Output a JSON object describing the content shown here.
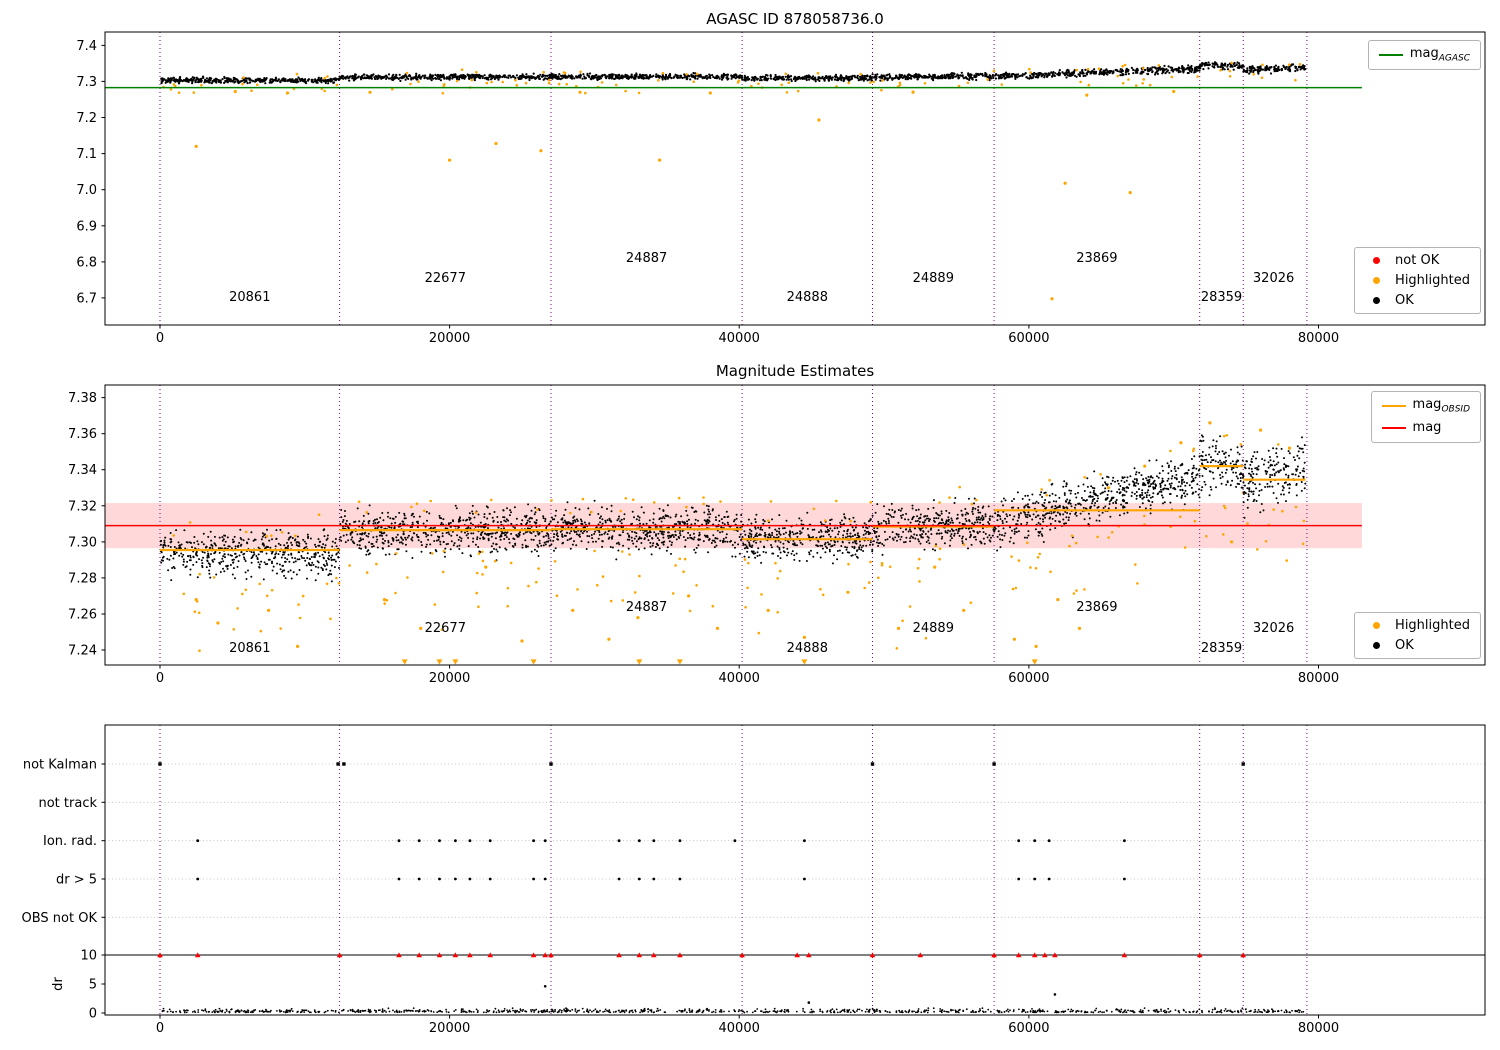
{
  "titles": {
    "top": "AGASC ID 878058736.0",
    "middle": "Magnitude Estimates"
  },
  "colors": {
    "ok": "#000000",
    "highlighted": "#ffa500",
    "not_ok": "#ff0000",
    "mag_agasc": "#008000",
    "mag": "#ff0000",
    "obsid": "#ffa500",
    "boundary": "#800080",
    "band": "#ffd9d9",
    "grid": "#bbbbbb"
  },
  "legends": {
    "agasc": {
      "base": "mag",
      "sub": "AGASC"
    },
    "top_markers": [
      {
        "label": "not OK",
        "color_key": "not_ok"
      },
      {
        "label": "Highlighted",
        "color_key": "highlighted"
      },
      {
        "label": "OK",
        "color_key": "ok"
      }
    ],
    "mid_lines": [
      {
        "base": "mag",
        "sub": "OBSID",
        "color_key": "obsid"
      },
      {
        "base": "mag",
        "sub": "",
        "color_key": "mag"
      }
    ],
    "mid_markers": [
      {
        "label": "Highlighted",
        "color_key": "highlighted"
      },
      {
        "label": "OK",
        "color_key": "ok"
      }
    ]
  },
  "chart_data": [
    {
      "type": "scatter",
      "title": "AGASC ID 878058736.0",
      "ylim": [
        6.625,
        7.437
      ],
      "yticks": [
        {
          "v": 7.4,
          "label": "7.4"
        },
        {
          "v": 7.3,
          "label": "7.3"
        },
        {
          "v": 7.2,
          "label": "7.2"
        },
        {
          "v": 7.1,
          "label": "7.1"
        },
        {
          "v": 7.0,
          "label": "7.0"
        },
        {
          "v": 6.9,
          "label": "6.9"
        },
        {
          "v": 6.8,
          "label": "6.8"
        },
        {
          "v": 6.7,
          "label": "6.7"
        }
      ],
      "xticks": [
        {
          "v": 0,
          "label": "0"
        },
        {
          "v": 20000,
          "label": "20000"
        },
        {
          "v": 40000,
          "label": "40000"
        },
        {
          "v": 60000,
          "label": "60000"
        },
        {
          "v": 80000,
          "label": "80000"
        }
      ],
      "ref_line": {
        "value": 7.283,
        "color_key": "mag_agasc",
        "x0": -3800,
        "x1": 83000
      },
      "boundaries": [
        0,
        12400,
        27000,
        40200,
        49200,
        57600,
        71800,
        74800,
        79200
      ],
      "observations": [
        {
          "id": "20861",
          "x0": 0,
          "x1": 12400,
          "mean0": 7.303,
          "mean1": 7.303,
          "sd": 0.0038,
          "label_x": 6200,
          "level": 0
        },
        {
          "id": "22677",
          "x0": 12400,
          "x1": 27000,
          "mean0": 7.3115,
          "mean1": 7.3125,
          "sd": 0.0038,
          "label_x": 19700,
          "level": 1
        },
        {
          "id": "24887",
          "x0": 27000,
          "x1": 40200,
          "mean0": 7.3125,
          "mean1": 7.3135,
          "sd": 0.0038,
          "label_x": 33600,
          "level": 2
        },
        {
          "id": "24888",
          "x0": 40200,
          "x1": 49200,
          "mean0": 7.3085,
          "mean1": 7.3105,
          "sd": 0.0038,
          "label_x": 44700,
          "level": 0
        },
        {
          "id": "24889",
          "x0": 49200,
          "x1": 57600,
          "mean0": 7.3115,
          "mean1": 7.3145,
          "sd": 0.004,
          "label_x": 53400,
          "level": 1
        },
        {
          "id": "23869",
          "x0": 57600,
          "x1": 71800,
          "mean0": 7.3135,
          "mean1": 7.3355,
          "sd": 0.0045,
          "label_x": 64700,
          "level": 2
        },
        {
          "id": "28359",
          "x0": 71800,
          "x1": 74800,
          "mean0": 7.3455,
          "mean1": 7.3425,
          "sd": 0.005,
          "label_x": 73300,
          "level": 0
        },
        {
          "id": "32026",
          "x0": 74800,
          "x1": 79100,
          "mean0": 7.331,
          "mean1": 7.34,
          "sd": 0.005,
          "label_x": 76900,
          "level": 1
        }
      ],
      "highlighted_outliers": [
        [
          2500,
          7.12
        ],
        [
          5200,
          7.272
        ],
        [
          8800,
          7.268
        ],
        [
          14500,
          7.27
        ],
        [
          20000,
          7.082
        ],
        [
          23200,
          7.128
        ],
        [
          26300,
          7.108
        ],
        [
          29000,
          7.27
        ],
        [
          34500,
          7.082
        ],
        [
          38000,
          7.268
        ],
        [
          45500,
          7.193
        ],
        [
          52000,
          7.27
        ],
        [
          61600,
          6.698
        ],
        [
          62500,
          7.018
        ],
        [
          64000,
          7.262
        ],
        [
          67000,
          6.992
        ],
        [
          70000,
          7.272
        ]
      ],
      "orange_frac": 0.05
    },
    {
      "type": "scatter",
      "title": "Magnitude Estimates",
      "ylim": [
        7.2317,
        7.387
      ],
      "yticks": [
        {
          "v": 7.38,
          "label": "7.38"
        },
        {
          "v": 7.36,
          "label": "7.36"
        },
        {
          "v": 7.34,
          "label": "7.34"
        },
        {
          "v": 7.32,
          "label": "7.32"
        },
        {
          "v": 7.3,
          "label": "7.30"
        },
        {
          "v": 7.28,
          "label": "7.28"
        },
        {
          "v": 7.26,
          "label": "7.26"
        },
        {
          "v": 7.24,
          "label": "7.24"
        }
      ],
      "xticks": [
        {
          "v": 0,
          "label": "0"
        },
        {
          "v": 20000,
          "label": "20000"
        },
        {
          "v": 40000,
          "label": "40000"
        },
        {
          "v": 60000,
          "label": "60000"
        },
        {
          "v": 80000,
          "label": "80000"
        }
      ],
      "ref_line": {
        "value": 7.309,
        "color_key": "mag",
        "x0": -3800,
        "x1": 83000
      },
      "band": {
        "y0": 7.2965,
        "y1": 7.3215,
        "x0": -3800,
        "x1": 83000,
        "color_key": "band"
      },
      "boundaries": [
        0,
        12400,
        27000,
        40200,
        49200,
        57600,
        71800,
        74800,
        79200
      ],
      "obsid_lines": true,
      "observations": [
        {
          "id": "20861",
          "x0": 0,
          "x1": 12400,
          "mean0": 7.294,
          "mean1": 7.294,
          "sd": 0.006,
          "obsid_mag": 7.2955,
          "label_x": 6200,
          "level": 0
        },
        {
          "id": "22677",
          "x0": 12400,
          "x1": 27000,
          "mean0": 7.3055,
          "mean1": 7.3065,
          "sd": 0.006,
          "obsid_mag": 7.3065,
          "label_x": 19700,
          "level": 1
        },
        {
          "id": "24887",
          "x0": 27000,
          "x1": 40200,
          "mean0": 7.3065,
          "mean1": 7.3075,
          "sd": 0.0058,
          "obsid_mag": 7.307,
          "label_x": 33600,
          "level": 2
        },
        {
          "id": "24888",
          "x0": 40200,
          "x1": 49200,
          "mean0": 7.301,
          "mean1": 7.3025,
          "sd": 0.0058,
          "obsid_mag": 7.3015,
          "label_x": 44700,
          "level": 0
        },
        {
          "id": "24889",
          "x0": 49200,
          "x1": 57600,
          "mean0": 7.307,
          "mean1": 7.3105,
          "sd": 0.006,
          "obsid_mag": 7.3085,
          "label_x": 53400,
          "level": 1
        },
        {
          "id": "23869",
          "x0": 57600,
          "x1": 71800,
          "mean0": 7.3095,
          "mean1": 7.3365,
          "sd": 0.0062,
          "obsid_mag": 7.3175,
          "label_x": 64700,
          "level": 2
        },
        {
          "id": "28359",
          "x0": 71800,
          "x1": 74800,
          "mean0": 7.3435,
          "mean1": 7.3415,
          "sd": 0.0075,
          "obsid_mag": 7.342,
          "label_x": 73300,
          "level": 0
        },
        {
          "id": "32026",
          "x0": 74800,
          "x1": 79100,
          "mean0": 7.332,
          "mean1": 7.341,
          "sd": 0.0078,
          "obsid_mag": 7.3345,
          "label_x": 76900,
          "level": 1
        }
      ],
      "highlighted_outliers": [
        [
          2500,
          7.268
        ],
        [
          4000,
          7.255
        ],
        [
          7500,
          7.262
        ],
        [
          9500,
          7.242
        ],
        [
          15500,
          7.268
        ],
        [
          18000,
          7.252
        ],
        [
          22500,
          7.286
        ],
        [
          25000,
          7.245
        ],
        [
          28500,
          7.262
        ],
        [
          31000,
          7.246
        ],
        [
          33000,
          7.258
        ],
        [
          36500,
          7.27
        ],
        [
          38500,
          7.252
        ],
        [
          42000,
          7.262
        ],
        [
          44500,
          7.247
        ],
        [
          47500,
          7.272
        ],
        [
          51000,
          7.252
        ],
        [
          53500,
          7.286
        ],
        [
          55500,
          7.262
        ],
        [
          59000,
          7.246
        ],
        [
          60500,
          7.242
        ],
        [
          62000,
          7.268
        ],
        [
          63500,
          7.252
        ],
        [
          65500,
          7.33
        ],
        [
          68000,
          7.342
        ],
        [
          70500,
          7.355
        ],
        [
          72500,
          7.366
        ],
        [
          74000,
          7.3
        ],
        [
          76000,
          7.362
        ],
        [
          78000,
          7.352
        ]
      ],
      "clipped_low_x": [
        16900,
        19300,
        20400,
        25800,
        33100,
        35900,
        44500,
        60400
      ],
      "orange_frac": 0.06
    },
    {
      "type": "flags",
      "rows": [
        {
          "label": "not Kalman",
          "x": [
            0,
            12300,
            12700,
            27000,
            49200,
            57600,
            74800
          ]
        },
        {
          "label": "not track",
          "x": []
        },
        {
          "label": "Ion. rad.",
          "x": [
            2600,
            16500,
            17900,
            19300,
            20400,
            21400,
            22800,
            25800,
            26600,
            31700,
            33100,
            34100,
            35900,
            39700,
            44500,
            59300,
            60400,
            61400,
            66600
          ]
        },
        {
          "label": "dr > 5",
          "x": [
            2600,
            16500,
            17900,
            19300,
            20400,
            21400,
            22800,
            25800,
            26600,
            31700,
            33100,
            34100,
            35900,
            44500,
            59300,
            60400,
            61400,
            66600
          ]
        },
        {
          "label": "OBS not OK",
          "x": []
        }
      ],
      "dr_axis": {
        "label": "dr",
        "ticks": [
          {
            "v": 10,
            "label": "10"
          },
          {
            "v": 5,
            "label": "5"
          },
          {
            "v": 0,
            "label": "0"
          }
        ],
        "ref_line": 10
      },
      "dr_red_x": [
        0,
        2600,
        12400,
        16500,
        17900,
        19300,
        20400,
        21400,
        22800,
        25800,
        26600,
        27000,
        31700,
        33100,
        34100,
        35900,
        40200,
        44000,
        44800,
        49200,
        52500,
        57600,
        59300,
        60400,
        61100,
        61800,
        66600,
        71800,
        74800
      ],
      "dr_black_outliers": [
        [
          26600,
          4.6
        ],
        [
          61800,
          3.2
        ],
        [
          44800,
          1.8
        ]
      ],
      "boundaries": [
        0,
        12400,
        27000,
        40200,
        49200,
        57600,
        71800,
        74800,
        79200
      ],
      "xticks": [
        {
          "v": 0,
          "label": "0"
        },
        {
          "v": 20000,
          "label": "20000"
        },
        {
          "v": 40000,
          "label": "40000"
        },
        {
          "v": 60000,
          "label": "60000"
        },
        {
          "v": 80000,
          "label": "80000"
        }
      ],
      "x_range": [
        0,
        79100
      ]
    }
  ]
}
